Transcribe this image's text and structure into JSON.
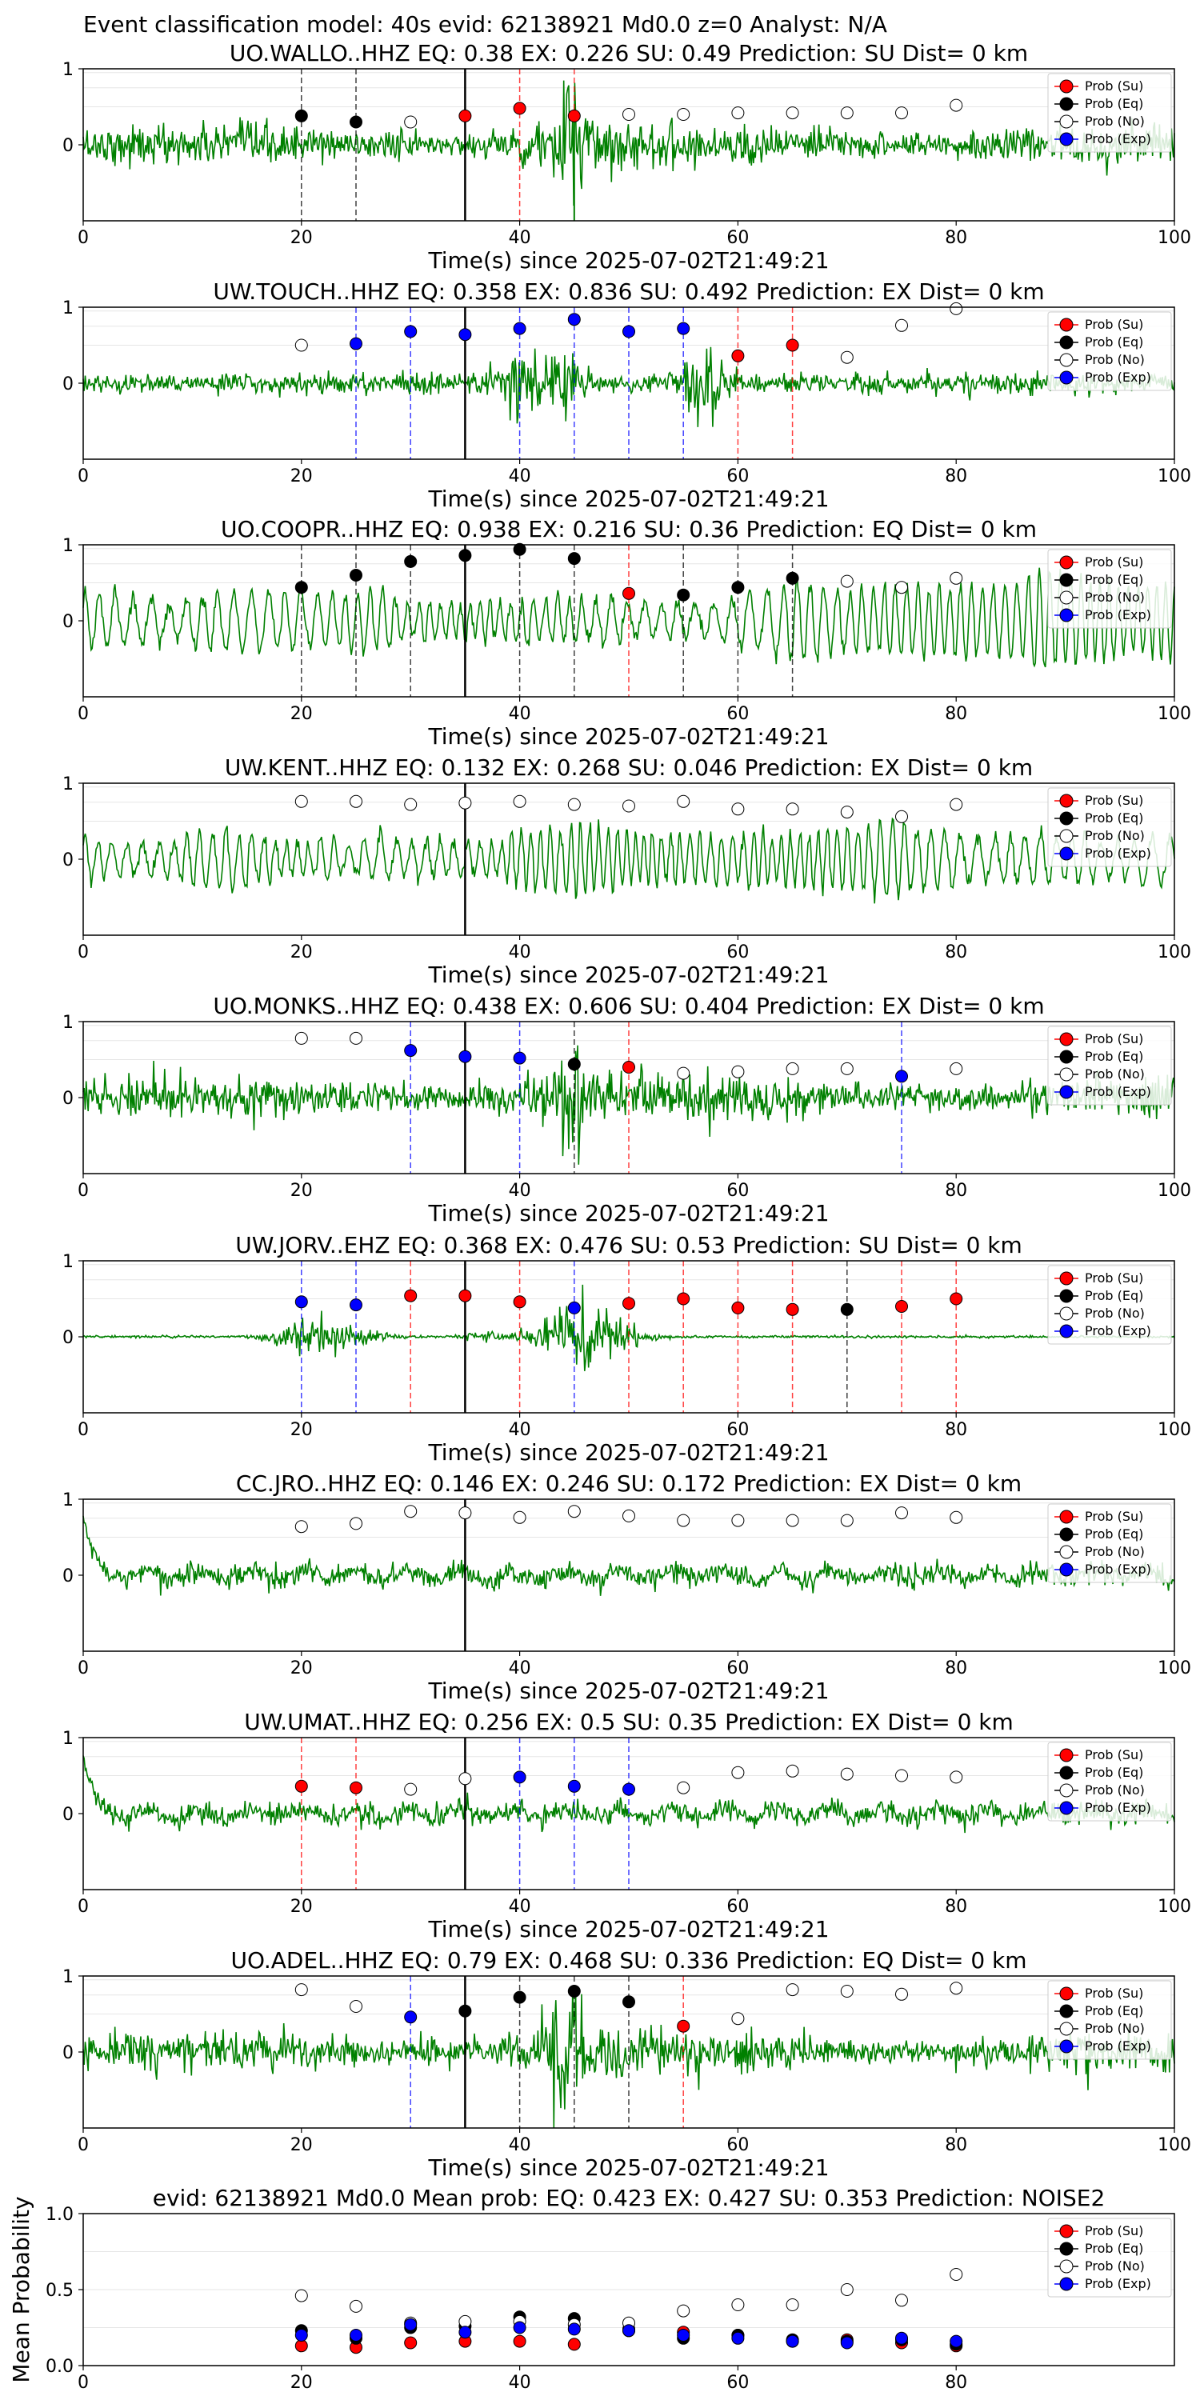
{
  "figure": {
    "suptitle": "Event classification model: 40s evid: 62138921 Md0.0 z=0 Analyst: N/A",
    "xlabel": "Time(s) since 2025-07-02T21:49:21",
    "legend": [
      "Prob (Su)",
      "Prob (Eq)",
      "Prob (No)",
      "Prob (Exp)"
    ],
    "colors": {
      "Su": "#ff0000",
      "Eq": "#000000",
      "No": "#ffffff",
      "Exp": "#0000ff",
      "waveform": "#008000"
    }
  },
  "chart_data": [
    {
      "type": "line",
      "station": "UO.WALLO..HHZ",
      "title": "UO.WALLO..HHZ   EQ: 0.38  EX: 0.226  SU: 0.49   Prediction: SU    Dist= 0 km",
      "style": "broadband",
      "xlim": [
        0,
        100
      ],
      "ylim": [
        -1,
        1
      ],
      "yticks": [
        0,
        1
      ],
      "xticks": [
        0,
        20,
        40,
        60,
        80,
        100
      ],
      "legend_position": "top-right",
      "pick_time": 35,
      "arrival_marker": 45,
      "windows": [
        20,
        25,
        30,
        35,
        40,
        45,
        50,
        55,
        60,
        65,
        70,
        75,
        80
      ],
      "predictions": [
        "Eq",
        "Eq",
        "No",
        "Su",
        "Su",
        "Su",
        "No",
        "No",
        "No",
        "No",
        "No",
        "No",
        "No"
      ],
      "probabilities": [
        0.38,
        0.3,
        0.3,
        0.38,
        0.48,
        0.38,
        0.4,
        0.4,
        0.42,
        0.42,
        0.42,
        0.42,
        0.52
      ]
    },
    {
      "type": "line",
      "station": "UW.TOUCH..HHZ",
      "title": "UW.TOUCH..HHZ   EQ: 0.358  EX: 0.836  SU: 0.492   Prediction: EX    Dist= 0 km",
      "style": "burst",
      "xlim": [
        0,
        100
      ],
      "ylim": [
        -1,
        1
      ],
      "yticks": [
        0,
        1
      ],
      "xticks": [
        0,
        20,
        40,
        60,
        80,
        100
      ],
      "legend_position": "top-right",
      "pick_time": 35,
      "arrival_marker": null,
      "windows": [
        20,
        25,
        30,
        35,
        40,
        45,
        50,
        55,
        60,
        65,
        70,
        75,
        80
      ],
      "predictions": [
        "No",
        "Exp",
        "Exp",
        "Exp",
        "Exp",
        "Exp",
        "Exp",
        "Exp",
        "Su",
        "Su",
        "No",
        "No",
        "No"
      ],
      "probabilities": [
        0.5,
        0.52,
        0.68,
        0.64,
        0.72,
        0.84,
        0.68,
        0.72,
        0.36,
        0.5,
        0.34,
        0.76,
        0.98
      ]
    },
    {
      "type": "line",
      "station": "UO.COOPR..HHZ",
      "title": "UO.COOPR..HHZ   EQ: 0.938  EX: 0.216  SU: 0.36   Prediction: EQ    Dist= 0 km",
      "style": "wave",
      "xlim": [
        0,
        100
      ],
      "ylim": [
        -1,
        1
      ],
      "yticks": [
        0,
        1
      ],
      "xticks": [
        0,
        20,
        40,
        60,
        80,
        100
      ],
      "legend_position": "top-right",
      "pick_time": 35,
      "arrival_marker": null,
      "windows": [
        20,
        25,
        30,
        35,
        40,
        45,
        50,
        55,
        60,
        65,
        70,
        75,
        80
      ],
      "predictions": [
        "Eq",
        "Eq",
        "Eq",
        "Eq",
        "Eq",
        "Eq",
        "Su",
        "Eq",
        "Eq",
        "Eq",
        "No",
        "No",
        "No"
      ],
      "probabilities": [
        0.44,
        0.6,
        0.78,
        0.86,
        0.94,
        0.82,
        0.36,
        0.34,
        0.44,
        0.56,
        0.52,
        0.44,
        0.56
      ]
    },
    {
      "type": "line",
      "station": "UW.KENT..HHZ",
      "title": "UW.KENT..HHZ   EQ: 0.132  EX: 0.268  SU: 0.046   Prediction: EX    Dist= 0 km",
      "style": "wave",
      "xlim": [
        0,
        100
      ],
      "ylim": [
        -1,
        1
      ],
      "yticks": [
        0,
        1
      ],
      "xticks": [
        0,
        20,
        40,
        60,
        80,
        100
      ],
      "legend_position": "top-right",
      "pick_time": 35,
      "arrival_marker": null,
      "windows": [
        20,
        25,
        30,
        35,
        40,
        45,
        50,
        55,
        60,
        65,
        70,
        75,
        80
      ],
      "predictions": [
        "No",
        "No",
        "No",
        "No",
        "No",
        "No",
        "No",
        "No",
        "No",
        "No",
        "No",
        "No",
        "No"
      ],
      "probabilities": [
        0.76,
        0.76,
        0.72,
        0.74,
        0.76,
        0.72,
        0.7,
        0.76,
        0.66,
        0.66,
        0.62,
        0.56,
        0.72
      ]
    },
    {
      "type": "line",
      "station": "UO.MONKS..HHZ",
      "title": "UO.MONKS..HHZ   EQ: 0.438  EX: 0.606  SU: 0.404   Prediction: EX    Dist= 0 km",
      "style": "broadband",
      "xlim": [
        0,
        100
      ],
      "ylim": [
        -1,
        1
      ],
      "yticks": [
        0,
        1
      ],
      "xticks": [
        0,
        20,
        40,
        60,
        80,
        100
      ],
      "legend_position": "top-right",
      "pick_time": 35,
      "arrival_marker": null,
      "windows": [
        20,
        25,
        30,
        35,
        40,
        45,
        50,
        55,
        60,
        65,
        70,
        75,
        80
      ],
      "predictions": [
        "No",
        "No",
        "Exp",
        "Exp",
        "Exp",
        "Eq",
        "Su",
        "No",
        "No",
        "No",
        "No",
        "Exp",
        "No"
      ],
      "probabilities": [
        0.78,
        0.78,
        0.62,
        0.54,
        0.52,
        0.44,
        0.4,
        0.32,
        0.34,
        0.38,
        0.38,
        0.28,
        0.38
      ]
    },
    {
      "type": "line",
      "station": "UW.JORV..EHZ",
      "title": "UW.JORV..EHZ   EQ: 0.368  EX: 0.476  SU: 0.53   Prediction: SU    Dist= 0 km",
      "style": "quiet-burst",
      "xlim": [
        0,
        100
      ],
      "ylim": [
        -1,
        1
      ],
      "yticks": [
        0,
        1
      ],
      "xticks": [
        0,
        20,
        40,
        60,
        80,
        100
      ],
      "legend_position": "top-right",
      "pick_time": 35,
      "arrival_marker": null,
      "windows": [
        20,
        25,
        30,
        35,
        40,
        45,
        50,
        55,
        60,
        65,
        70,
        75,
        80
      ],
      "predictions": [
        "Exp",
        "Exp",
        "Su",
        "Su",
        "Su",
        "Exp",
        "Su",
        "Su",
        "Su",
        "Su",
        "Eq",
        "Su",
        "Su"
      ],
      "probabilities": [
        0.46,
        0.42,
        0.54,
        0.54,
        0.46,
        0.38,
        0.44,
        0.5,
        0.38,
        0.36,
        0.36,
        0.4,
        0.5
      ]
    },
    {
      "type": "line",
      "station": "CC.JRO..HHZ",
      "title": "CC.JRO..HHZ   EQ: 0.146  EX: 0.246  SU: 0.172   Prediction: EX    Dist= 0 km",
      "style": "low",
      "xlim": [
        0,
        100
      ],
      "ylim": [
        -1,
        1
      ],
      "yticks": [
        0,
        1
      ],
      "xticks": [
        0,
        20,
        40,
        60,
        80,
        100
      ],
      "legend_position": "top-right",
      "pick_time": 35,
      "arrival_marker": null,
      "windows": [
        20,
        25,
        30,
        35,
        40,
        45,
        50,
        55,
        60,
        65,
        70,
        75,
        80
      ],
      "predictions": [
        "No",
        "No",
        "No",
        "No",
        "No",
        "No",
        "No",
        "No",
        "No",
        "No",
        "No",
        "No",
        "No"
      ],
      "probabilities": [
        0.64,
        0.68,
        0.84,
        0.82,
        0.76,
        0.84,
        0.78,
        0.72,
        0.72,
        0.72,
        0.72,
        0.82,
        0.76
      ]
    },
    {
      "type": "line",
      "station": "UW.UMAT..HHZ",
      "title": "UW.UMAT..HHZ   EQ: 0.256  EX: 0.5  SU: 0.35   Prediction: EX    Dist= 0 km",
      "style": "low",
      "xlim": [
        0,
        100
      ],
      "ylim": [
        -1,
        1
      ],
      "yticks": [
        0,
        1
      ],
      "xticks": [
        0,
        20,
        40,
        60,
        80,
        100
      ],
      "legend_position": "top-right",
      "pick_time": 35,
      "arrival_marker": null,
      "windows": [
        20,
        25,
        30,
        35,
        40,
        45,
        50,
        55,
        60,
        65,
        70,
        75,
        80
      ],
      "predictions": [
        "Su",
        "Su",
        "No",
        "No",
        "Exp",
        "Exp",
        "Exp",
        "No",
        "No",
        "No",
        "No",
        "No",
        "No"
      ],
      "probabilities": [
        0.36,
        0.34,
        0.32,
        0.46,
        0.48,
        0.36,
        0.32,
        0.34,
        0.54,
        0.56,
        0.52,
        0.5,
        0.48
      ]
    },
    {
      "type": "line",
      "station": "UO.ADEL..HHZ",
      "title": "UO.ADEL..HHZ   EQ: 0.79  EX: 0.468  SU: 0.336   Prediction: EQ    Dist= 0 km",
      "style": "broadband",
      "xlim": [
        0,
        100
      ],
      "ylim": [
        -1,
        1
      ],
      "yticks": [
        0,
        1
      ],
      "xticks": [
        0,
        20,
        40,
        60,
        80,
        100
      ],
      "legend_position": "top-right",
      "pick_time": 35,
      "arrival_marker": null,
      "windows": [
        20,
        25,
        30,
        35,
        40,
        45,
        50,
        55,
        60,
        65,
        70,
        75,
        80
      ],
      "predictions": [
        "No",
        "No",
        "Exp",
        "Eq",
        "Eq",
        "Eq",
        "Eq",
        "Su",
        "No",
        "No",
        "No",
        "No",
        "No"
      ],
      "probabilities": [
        0.82,
        0.6,
        0.46,
        0.54,
        0.72,
        0.8,
        0.66,
        0.34,
        0.44,
        0.82,
        0.8,
        0.76,
        0.84
      ]
    },
    {
      "type": "scatter",
      "title": "evid: 62138921  Md0.0   Mean prob:    EQ: 0.423  EX: 0.427  SU: 0.353   Prediction: NOISE2",
      "ylabel": "Mean Probability",
      "xlim": [
        0,
        100
      ],
      "ylim": [
        0,
        1
      ],
      "yticks": [
        0.0,
        0.5,
        1.0
      ],
      "xticks": [
        0,
        20,
        40,
        60,
        80
      ],
      "legend_position": "top-right",
      "x": [
        20,
        25,
        30,
        35,
        40,
        45,
        50,
        55,
        60,
        65,
        70,
        75,
        80
      ],
      "series": [
        {
          "name": "Prob (Su)",
          "class": "Su",
          "values": [
            0.13,
            0.12,
            0.15,
            0.16,
            0.16,
            0.14,
            0.23,
            0.22,
            0.2,
            0.16,
            0.17,
            0.15,
            0.13
          ]
        },
        {
          "name": "Prob (Eq)",
          "class": "Eq",
          "values": [
            0.23,
            0.18,
            0.25,
            0.26,
            0.32,
            0.31,
            0.24,
            0.18,
            0.2,
            0.17,
            0.16,
            0.17,
            0.14
          ]
        },
        {
          "name": "Prob (No)",
          "class": "No",
          "values": [
            0.46,
            0.39,
            0.28,
            0.29,
            0.29,
            0.27,
            0.28,
            0.36,
            0.4,
            0.4,
            0.5,
            0.43,
            0.6
          ]
        },
        {
          "name": "Prob (Exp)",
          "class": "Exp",
          "values": [
            0.2,
            0.2,
            0.27,
            0.22,
            0.25,
            0.24,
            0.23,
            0.2,
            0.18,
            0.16,
            0.15,
            0.18,
            0.16
          ]
        }
      ]
    }
  ]
}
